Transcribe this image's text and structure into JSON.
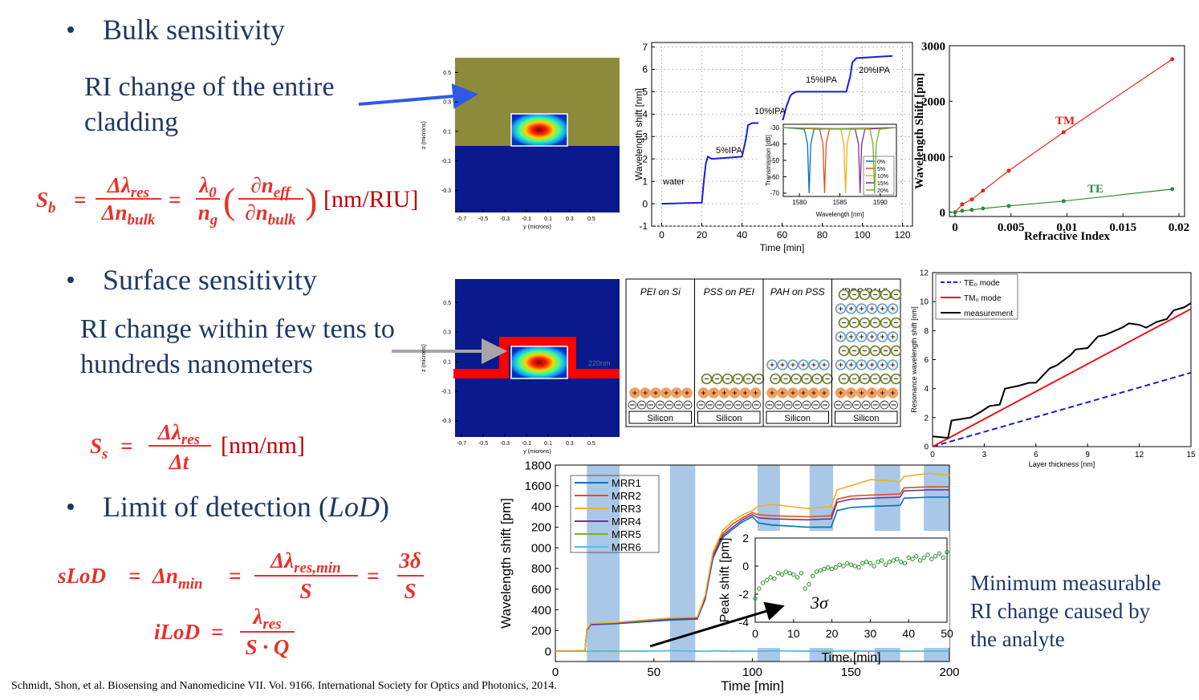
{
  "slide": {
    "bullets": [
      "Bulk sensitivity",
      "Surface sensitivity"
    ],
    "lod_bullet": {
      "before": "Limit of detection (",
      "italic": "LoD",
      "after": ")"
    },
    "bulk_note": [
      "RI change of the entire",
      "cladding"
    ],
    "surface_note": [
      "RI change within few tens to",
      "hundreds nanometers"
    ],
    "right_note": [
      "Minimum measurable",
      "RI change caused by",
      "the analyte"
    ],
    "citation": "Schmidt, Shon, et al.  Biosensing and Nanomedicine VII. Vol. 9166. International Society for Optics and Photonics, 2014."
  },
  "equations": {
    "bulk": {
      "lhs": "S",
      "lhs_sub": "b",
      "eq": "=",
      "f1_num": "Δλ",
      "f1_num_sub": "res",
      "f1_den": "Δn",
      "f1_den_sub": "bulk",
      "eq2": "=",
      "f2_num": "λ",
      "f2_num_sub": "0",
      "f2_den": "n",
      "f2_den_sub": "g",
      "lparen": "(",
      "f3_num": "∂n",
      "f3_num_sub": "eff",
      "f3_den": "∂n",
      "f3_den_sub": "bulk",
      "rparen": ")",
      "unit": "[nm/RIU]"
    },
    "surface": {
      "lhs": "S",
      "lhs_sub": "s",
      "eq": "=",
      "num": "Δλ",
      "num_sub": "res",
      "den": "Δt",
      "unit": "[nm/nm]"
    },
    "slod": {
      "lhs": "sLoD",
      "eq": "=",
      "mid": "Δn",
      "mid_sub": "min",
      "eq2": "=",
      "f1_num": "Δλ",
      "f1_num_sub": "res,min",
      "f1_den": "S",
      "eq3": "=",
      "f2_num": "3δ",
      "f2_den": "S"
    },
    "ilod": {
      "lhs": "iLoD",
      "eq": "=",
      "num": "λ",
      "num_sub": "res",
      "den": "S · Q"
    }
  },
  "charts": {
    "mode_bulk": {
      "type": "image",
      "xlabel": "y (microns)",
      "ylabel": "z (microns)",
      "xlim": [
        -0.76,
        0.76
      ],
      "ylim": [
        -0.45,
        0.6
      ],
      "xticks": [
        -0.7,
        -0.5,
        -0.3,
        -0.1,
        0.1,
        0.3,
        0.5
      ],
      "yticks": [
        -0.3,
        -0.1,
        0.1,
        0.3,
        0.5
      ]
    },
    "mode_surface": {
      "type": "image",
      "xlabel": "y (microns)",
      "ylabel": "z (microns)",
      "annotation": "220nm",
      "xlim": [
        -0.76,
        0.76
      ],
      "ylim": [
        -0.41,
        0.66
      ],
      "xticks": [
        -0.7,
        -0.5,
        -0.3,
        -0.1,
        0.1,
        0.3,
        0.5
      ],
      "yticks": [
        -0.3,
        -0.1,
        0.1,
        0.3,
        0.5
      ]
    },
    "ipa": {
      "type": "line",
      "xlabel": "Time [min]",
      "ylabel": "Wavelength shift [nm]",
      "xlim": [
        -5,
        125
      ],
      "ylim": [
        -1,
        7.2
      ],
      "xticks": [
        0,
        20,
        40,
        60,
        80,
        100,
        120
      ],
      "yticks": [
        -1,
        0,
        1,
        2,
        3,
        4,
        5,
        6,
        7
      ],
      "grid": true,
      "annotations": [
        "water",
        "5%IPA",
        "10%IPA",
        "15%IPA",
        "20%IPA"
      ],
      "series": [
        {
          "color": "#1a1ae6",
          "x": [
            0,
            20,
            21,
            22,
            23,
            25,
            40,
            42,
            43,
            45,
            60,
            62,
            64,
            65,
            67,
            92,
            94,
            95,
            97,
            115
          ],
          "values": [
            0,
            0.05,
            1.0,
            1.8,
            2.1,
            2.0,
            2.1,
            2.9,
            3.5,
            3.6,
            3.6,
            4.3,
            4.8,
            4.9,
            5.0,
            5.0,
            5.7,
            6.3,
            6.5,
            6.6
          ]
        }
      ]
    },
    "transmission": {
      "type": "line",
      "xlabel": "Wavelength [nm]",
      "ylabel": "Transmission [dB]",
      "xlim": [
        1578,
        1592
      ],
      "ylim": [
        -72,
        -28
      ],
      "xticks": [
        1580,
        1585,
        1590
      ],
      "yticks": [
        -30,
        -40,
        -50,
        -60,
        -70
      ],
      "series": [
        {
          "name": "0%",
          "color": "#0072bd",
          "x": [
            1578,
            1580.6,
            1581.0,
            1581.2,
            1581.4,
            1581.8,
            1592
          ],
          "values": [
            -30,
            -31,
            -40,
            -70,
            -40,
            -31,
            -30
          ]
        },
        {
          "name": "5%",
          "color": "#d95319",
          "x": [
            1578,
            1582.5,
            1582.9,
            1583.1,
            1583.3,
            1583.7,
            1592
          ],
          "values": [
            -30,
            -31,
            -40,
            -70,
            -40,
            -31,
            -30
          ]
        },
        {
          "name": "10%",
          "color": "#edb120",
          "x": [
            1578,
            1585.1,
            1585.5,
            1585.7,
            1585.9,
            1586.3,
            1592
          ],
          "values": [
            -30,
            -31,
            -40,
            -70,
            -40,
            -31,
            -30
          ]
        },
        {
          "name": "15%",
          "color": "#7e2f8e",
          "x": [
            1578,
            1586.9,
            1587.3,
            1587.5,
            1587.7,
            1588.1,
            1592
          ],
          "values": [
            -30,
            -31,
            -40,
            -70,
            -40,
            -31,
            -30
          ]
        },
        {
          "name": "20%",
          "color": "#77ac30",
          "x": [
            1578,
            1588.7,
            1589.1,
            1589.3,
            1589.5,
            1589.9,
            1592
          ],
          "values": [
            -30,
            -31,
            -40,
            -70,
            -40,
            -31,
            -30
          ]
        }
      ]
    },
    "ri": {
      "type": "line",
      "xlabel": "Refractive Index",
      "ylabel": "Wavelength Shift [pm]",
      "xlim": [
        -0.0005,
        0.0205
      ],
      "ylim": [
        -75,
        3000
      ],
      "xticks": [
        0,
        0.005,
        0.01,
        0.015,
        0.02
      ],
      "yticks": [
        0,
        1000,
        2000,
        3000
      ],
      "series": [
        {
          "name": "TM",
          "color": "#e8231e",
          "x": [
            0,
            0.00064,
            0.0015,
            0.0025,
            0.0048,
            0.0097,
            0.0194
          ],
          "values": [
            0,
            144,
            231,
            390,
            750,
            1443,
            2756
          ]
        },
        {
          "name": "TE",
          "color": "#2e8b3e",
          "x": [
            0,
            0.00064,
            0.0015,
            0.0025,
            0.0048,
            0.0097,
            0.0194
          ],
          "values": [
            0,
            29,
            45,
            70,
            115,
            202,
            418
          ]
        }
      ]
    },
    "thickness": {
      "type": "line",
      "xlabel": "Layer thickness [nm]",
      "ylabel": "Resonance wavelength shift [nm]",
      "xlim": [
        0,
        15
      ],
      "ylim": [
        0,
        12
      ],
      "xticks": [
        0,
        3,
        6,
        9,
        12,
        15
      ],
      "yticks": [
        0,
        2,
        4,
        6,
        8,
        10,
        12
      ],
      "series": [
        {
          "name": "TE₀ mode",
          "color": "#1a1ad6",
          "dash": true,
          "x": [
            0,
            15
          ],
          "values": [
            0,
            5.1
          ]
        },
        {
          "name": "TM₀ mode",
          "color": "#e8141e",
          "x": [
            0,
            15
          ],
          "values": [
            0,
            9.5
          ]
        },
        {
          "name": "measurement",
          "color": "#000000",
          "x": [
            0,
            0.9,
            1.1,
            2.2,
            2.8,
            3.3,
            3.9,
            4.2,
            5.0,
            5.6,
            6.0,
            6.8,
            7.2,
            8.0,
            8.3,
            9.0,
            9.6,
            10.0,
            11.0,
            11.4,
            12.0,
            12.4,
            13.0,
            13.6,
            14.0,
            14.6,
            15.0
          ],
          "values": [
            0.7,
            0.6,
            1.8,
            2.0,
            2.4,
            2.8,
            2.9,
            4.0,
            4.2,
            4.4,
            4.4,
            5.4,
            5.6,
            6.3,
            6.7,
            6.8,
            7.6,
            7.7,
            8.2,
            8.5,
            8.4,
            8.2,
            8.6,
            8.8,
            9.4,
            9.6,
            9.9
          ]
        }
      ]
    },
    "mrr": {
      "type": "line",
      "xlabel": "Time [min]",
      "ylabel": "Wavelength shift [pm]",
      "xlim": [
        0,
        200
      ],
      "ylim": [
        -100,
        1800
      ],
      "xticks": [
        0,
        50,
        100,
        150,
        200
      ],
      "yticks": [
        0,
        200,
        400,
        600,
        800,
        {
          "value": 1000,
          "label": "000"
        },
        {
          "value": 1200,
          "label": "200"
        },
        {
          "value": 1400,
          "label": "400"
        },
        1600,
        1800
      ],
      "highlight_spans": [
        [
          16,
          32.6
        ],
        [
          58.2,
          71
        ],
        [
          102.6,
          114
        ],
        [
          129,
          141
        ],
        [
          162,
          175
        ],
        [
          187,
          200
        ]
      ],
      "x": [
        0,
        15,
        16,
        18,
        30,
        58,
        72,
        76,
        80,
        85,
        90,
        95,
        100,
        103,
        110,
        128,
        140,
        143,
        150,
        160,
        175,
        177,
        190,
        200
      ],
      "series": [
        {
          "name": "MRR1",
          "color": "#0072bd",
          "values": [
            0,
            0,
            200,
            255,
            265,
            300,
            310,
            500,
            900,
            1100,
            1180,
            1250,
            1300,
            1240,
            1220,
            1200,
            1200,
            1360,
            1390,
            1400,
            1410,
            1480,
            1490,
            1490
          ]
        },
        {
          "name": "MRR2",
          "color": "#d95319",
          "values": [
            0,
            0,
            210,
            262,
            272,
            315,
            322,
            520,
            930,
            1140,
            1230,
            1290,
            1340,
            1320,
            1310,
            1300,
            1310,
            1470,
            1500,
            1510,
            1520,
            1580,
            1590,
            1590
          ]
        },
        {
          "name": "MRR3",
          "color": "#edb120",
          "values": [
            0,
            0,
            215,
            268,
            278,
            320,
            330,
            540,
            960,
            1170,
            1260,
            1320,
            1360,
            1400,
            1420,
            1380,
            1400,
            1560,
            1600,
            1660,
            1640,
            1690,
            1720,
            1700
          ]
        },
        {
          "name": "MRR4",
          "color": "#7e2f8e",
          "values": [
            0,
            0,
            205,
            258,
            270,
            312,
            320,
            510,
            910,
            1120,
            1200,
            1270,
            1320,
            1290,
            1280,
            1270,
            1280,
            1440,
            1470,
            1480,
            1490,
            1550,
            1560,
            1560
          ]
        },
        {
          "name": "MRR5",
          "color": "#77ac30",
          "values": [
            0,
            2,
            -2,
            1,
            0,
            3,
            1,
            -1,
            2,
            0,
            1,
            2,
            0,
            -1,
            3,
            1,
            0,
            2,
            1,
            0,
            2,
            1,
            0,
            1
          ]
        },
        {
          "name": "MRR6",
          "color": "#4dbeee",
          "values": [
            0,
            5,
            -5,
            3,
            -2,
            4,
            0,
            -3,
            5,
            2,
            -4,
            3,
            1,
            -2,
            4,
            0,
            -3,
            2,
            5,
            -1,
            3,
            -2,
            0,
            2
          ]
        }
      ]
    },
    "peak": {
      "type": "scatter",
      "xlabel": "Time [min]",
      "ylabel": "Peak shift [pm]",
      "annotation": "3σ",
      "xlim": [
        0,
        50
      ],
      "ylim": [
        -4,
        2
      ],
      "xticks": [
        0,
        10,
        20,
        30,
        40,
        50
      ],
      "yticks": [
        -4,
        -2,
        0,
        2
      ],
      "color": "#1e8c1e",
      "x": [
        0,
        1,
        2,
        3,
        4,
        5,
        6,
        7,
        8,
        9,
        10,
        11,
        12,
        13,
        14,
        15,
        16,
        17,
        18,
        19,
        20,
        21,
        22,
        23,
        24,
        25,
        26,
        27,
        28,
        29,
        30,
        31,
        32,
        33,
        34,
        35,
        36,
        37,
        38,
        39,
        40,
        41,
        42,
        43,
        44,
        45,
        46,
        47,
        48,
        49,
        50
      ],
      "values": [
        -2.3,
        -1.6,
        -1.2,
        -1.0,
        -0.8,
        -0.9,
        -0.5,
        -0.6,
        -0.4,
        -0.5,
        -0.6,
        -0.8,
        -0.5,
        -1.6,
        -1.3,
        -0.7,
        -0.4,
        -0.3,
        -0.2,
        -0.1,
        -0.2,
        -0.1,
        0.1,
        0.0,
        0.2,
        0.1,
        0.0,
        -0.1,
        0.2,
        0.3,
        0.2,
        0.0,
        0.3,
        0.4,
        0.1,
        0.3,
        0.4,
        0.5,
        0.3,
        0.2,
        0.6,
        0.5,
        0.7,
        0.4,
        0.6,
        0.8,
        0.5,
        0.7,
        0.9,
        0.6,
        1.0
      ]
    }
  },
  "diagram": {
    "columns": [
      {
        "title": "PEI on Si",
        "substrate": "Silicon"
      },
      {
        "title": "PSS on PEI",
        "substrate": "Silicon"
      },
      {
        "title": "PAH on PSS",
        "substrate": "Silicon"
      },
      {
        "title": "(PSS/PAH)",
        "title_sub": "n",
        "substrate": "Silicon"
      }
    ]
  }
}
